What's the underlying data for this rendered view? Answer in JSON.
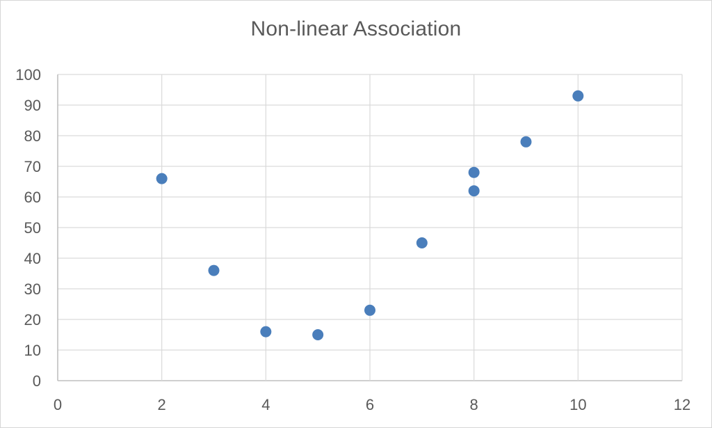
{
  "chart": {
    "title": "Non-linear Association"
  },
  "chart_data": {
    "type": "scatter",
    "title": "Non-linear Association",
    "points": [
      {
        "x": 2,
        "y": 66
      },
      {
        "x": 3,
        "y": 36
      },
      {
        "x": 4,
        "y": 16
      },
      {
        "x": 5,
        "y": 15
      },
      {
        "x": 6,
        "y": 23
      },
      {
        "x": 7,
        "y": 45
      },
      {
        "x": 8,
        "y": 68
      },
      {
        "x": 8,
        "y": 62
      },
      {
        "x": 9,
        "y": 78
      },
      {
        "x": 10,
        "y": 93
      }
    ],
    "xlabel": "",
    "ylabel": "",
    "xlim": [
      0,
      12
    ],
    "ylim": [
      0,
      100
    ],
    "x_ticks": [
      0,
      2,
      4,
      6,
      8,
      10,
      12
    ],
    "y_ticks": [
      0,
      10,
      20,
      30,
      40,
      50,
      60,
      70,
      80,
      90,
      100
    ],
    "grid": true,
    "legend": false,
    "marker_color": "#4A7EBB",
    "gridline_color": "#D9D9D9",
    "axis_line_color": "#BFBFBF",
    "text_color": "#595959",
    "background_color": "#FFFFFF"
  }
}
